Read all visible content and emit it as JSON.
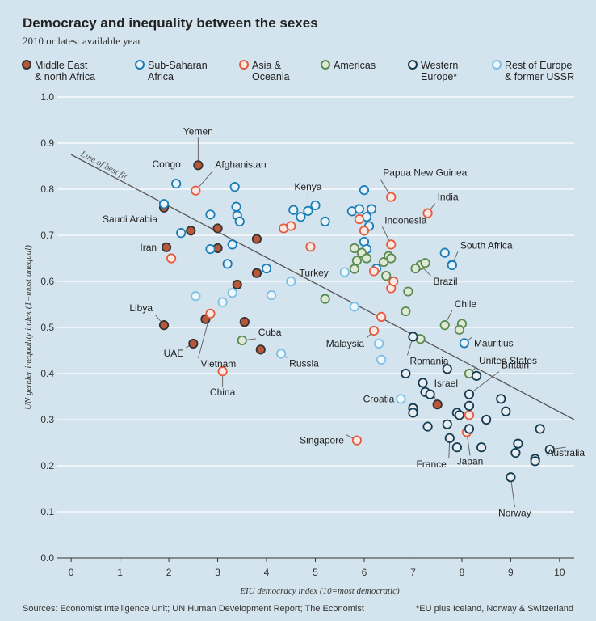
{
  "header": {
    "title": "Democracy and inequality between the sexes",
    "subtitle": "2010 or latest available year"
  },
  "footer": {
    "source": "Sources: Economist Intelligence Unit; UN Human Development Report; The Economist",
    "note": "*EU plus Iceland, Norway & Switzerland"
  },
  "colors": {
    "background": "#d4e4ee",
    "grid": "#ffffff",
    "fit_line": "#555555",
    "connector": "#666666"
  },
  "chart_data": {
    "type": "scatter",
    "title": "Democracy and inequality between the sexes",
    "subtitle": "2010 or latest available year",
    "xlabel": "EIU democracy index (10=most democratic)",
    "ylabel": "UN gender inequality index (1=most unequal)",
    "xlim": [
      -0.3,
      10.3
    ],
    "ylim": [
      0,
      1.0
    ],
    "xticks": [
      0,
      1,
      2,
      3,
      4,
      5,
      6,
      7,
      8,
      9,
      10
    ],
    "yticks": [
      0,
      0.1,
      0.2,
      0.3,
      0.4,
      0.5,
      0.6,
      0.7,
      0.8,
      0.9,
      1.0
    ],
    "grid": true,
    "fit_line": {
      "label": "Line of best fit",
      "x": [
        0,
        10.3
      ],
      "y": [
        0.875,
        0.3
      ]
    },
    "series": [
      {
        "key": "mena",
        "name": "Middle East & north Africa",
        "legend_lines": [
          "Middle East",
          "& north Africa"
        ],
        "stroke": "#333333",
        "fill": "#b85838",
        "points": [
          {
            "x": 2.6,
            "y": 0.852,
            "label": "Yemen"
          },
          {
            "x": 1.9,
            "y": 0.76,
            "label": "Saudi Arabia"
          },
          {
            "x": 1.95,
            "y": 0.674,
            "label": "Iran"
          },
          {
            "x": 1.9,
            "y": 0.505,
            "label": "Libya"
          },
          {
            "x": 2.5,
            "y": 0.465,
            "label": "UAE"
          },
          {
            "x": 7.5,
            "y": 0.333,
            "label": "Israel"
          },
          {
            "x": 2.45,
            "y": 0.71
          },
          {
            "x": 3.0,
            "y": 0.715
          },
          {
            "x": 3.0,
            "y": 0.672
          },
          {
            "x": 3.4,
            "y": 0.593
          },
          {
            "x": 3.55,
            "y": 0.512
          },
          {
            "x": 3.8,
            "y": 0.692
          },
          {
            "x": 3.8,
            "y": 0.618
          },
          {
            "x": 2.75,
            "y": 0.518
          },
          {
            "x": 3.88,
            "y": 0.452
          }
        ]
      },
      {
        "key": "ssa",
        "name": "Sub-Saharan Africa",
        "legend_lines": [
          "Sub-Saharan",
          "Africa"
        ],
        "stroke": "#1b7db5",
        "fill": "#e6f1f8",
        "points": [
          {
            "x": 2.15,
            "y": 0.812,
            "label": "Congo"
          },
          {
            "x": 4.85,
            "y": 0.753,
            "label": "Kenya"
          },
          {
            "x": 7.8,
            "y": 0.636,
            "label": "South Africa"
          },
          {
            "x": 8.05,
            "y": 0.466,
            "label": "Mauritius"
          },
          {
            "x": 1.9,
            "y": 0.768
          },
          {
            "x": 2.25,
            "y": 0.705
          },
          {
            "x": 2.85,
            "y": 0.67
          },
          {
            "x": 2.85,
            "y": 0.745
          },
          {
            "x": 3.35,
            "y": 0.805
          },
          {
            "x": 3.38,
            "y": 0.762
          },
          {
            "x": 3.4,
            "y": 0.743
          },
          {
            "x": 3.45,
            "y": 0.73
          },
          {
            "x": 3.3,
            "y": 0.68
          },
          {
            "x": 3.2,
            "y": 0.638
          },
          {
            "x": 4.0,
            "y": 0.628
          },
          {
            "x": 4.55,
            "y": 0.755
          },
          {
            "x": 4.7,
            "y": 0.74
          },
          {
            "x": 5.0,
            "y": 0.765
          },
          {
            "x": 5.2,
            "y": 0.73
          },
          {
            "x": 5.75,
            "y": 0.752
          },
          {
            "x": 5.9,
            "y": 0.757
          },
          {
            "x": 6.0,
            "y": 0.798
          },
          {
            "x": 6.05,
            "y": 0.74
          },
          {
            "x": 6.1,
            "y": 0.72
          },
          {
            "x": 6.15,
            "y": 0.757
          },
          {
            "x": 6.0,
            "y": 0.686
          },
          {
            "x": 6.05,
            "y": 0.67
          },
          {
            "x": 6.25,
            "y": 0.628
          },
          {
            "x": 7.65,
            "y": 0.662
          },
          {
            "x": 7.8,
            "y": 0.635
          }
        ]
      },
      {
        "key": "asia",
        "name": "Asia & Oceania",
        "legend_lines": [
          "Asia &",
          "Oceania"
        ],
        "stroke": "#e55a3c",
        "fill": "#fbe9e4",
        "points": [
          {
            "x": 2.55,
            "y": 0.797,
            "label": "Afghanistan"
          },
          {
            "x": 6.55,
            "y": 0.783,
            "label": "Papua New Guinea"
          },
          {
            "x": 7.3,
            "y": 0.748,
            "label": "India"
          },
          {
            "x": 6.55,
            "y": 0.68,
            "label": "Indonesia"
          },
          {
            "x": 2.85,
            "y": 0.53,
            "label": "Vietnam"
          },
          {
            "x": 3.1,
            "y": 0.405,
            "label": "China"
          },
          {
            "x": 5.85,
            "y": 0.255,
            "label": "Singapore"
          },
          {
            "x": 8.1,
            "y": 0.273,
            "label": "Japan"
          },
          {
            "x": 6.2,
            "y": 0.493,
            "label": "Malaysia"
          },
          {
            "x": 2.05,
            "y": 0.65
          },
          {
            "x": 4.35,
            "y": 0.715
          },
          {
            "x": 4.5,
            "y": 0.72
          },
          {
            "x": 4.9,
            "y": 0.675
          },
          {
            "x": 5.9,
            "y": 0.735
          },
          {
            "x": 6.2,
            "y": 0.622
          },
          {
            "x": 6.55,
            "y": 0.585
          },
          {
            "x": 6.6,
            "y": 0.6
          },
          {
            "x": 6.35,
            "y": 0.523
          },
          {
            "x": 8.15,
            "y": 0.31
          },
          {
            "x": 6.0,
            "y": 0.71
          },
          {
            "x": 6.5,
            "y": 0.652
          }
        ]
      },
      {
        "key": "americas",
        "name": "Americas",
        "legend_lines": [
          "Americas"
        ],
        "stroke": "#5a8a52",
        "fill": "#dfe9d6",
        "points": [
          {
            "x": 7.15,
            "y": 0.635,
            "label": "Brazil"
          },
          {
            "x": 7.65,
            "y": 0.505,
            "label": "Chile"
          },
          {
            "x": 8.15,
            "y": 0.4,
            "label": "United States"
          },
          {
            "x": 3.5,
            "y": 0.472,
            "label": "Cuba"
          },
          {
            "x": 5.2,
            "y": 0.562
          },
          {
            "x": 5.8,
            "y": 0.672
          },
          {
            "x": 5.85,
            "y": 0.645
          },
          {
            "x": 5.8,
            "y": 0.627
          },
          {
            "x": 5.95,
            "y": 0.662
          },
          {
            "x": 6.05,
            "y": 0.65
          },
          {
            "x": 6.4,
            "y": 0.642
          },
          {
            "x": 6.5,
            "y": 0.655
          },
          {
            "x": 6.55,
            "y": 0.65
          },
          {
            "x": 6.45,
            "y": 0.612
          },
          {
            "x": 6.9,
            "y": 0.578
          },
          {
            "x": 6.85,
            "y": 0.535
          },
          {
            "x": 7.15,
            "y": 0.475
          },
          {
            "x": 7.25,
            "y": 0.64
          },
          {
            "x": 7.05,
            "y": 0.628
          },
          {
            "x": 8.0,
            "y": 0.508
          },
          {
            "x": 7.95,
            "y": 0.495
          }
        ]
      },
      {
        "key": "western_europe",
        "name": "Western Europe*",
        "legend_lines": [
          "Western",
          "Europe*"
        ],
        "stroke": "#143a52",
        "fill": "#e6eef3",
        "points": [
          {
            "x": 7.0,
            "y": 0.48,
            "label": "Romania"
          },
          {
            "x": 8.15,
            "y": 0.355,
            "label": "Britain"
          },
          {
            "x": 7.75,
            "y": 0.26,
            "label": "France"
          },
          {
            "x": 9.8,
            "y": 0.235,
            "label": "Australia"
          },
          {
            "x": 9.0,
            "y": 0.175,
            "label": "Norway"
          },
          {
            "x": 6.85,
            "y": 0.4
          },
          {
            "x": 7.0,
            "y": 0.325
          },
          {
            "x": 7.0,
            "y": 0.315
          },
          {
            "x": 7.2,
            "y": 0.38
          },
          {
            "x": 7.25,
            "y": 0.36
          },
          {
            "x": 7.35,
            "y": 0.355
          },
          {
            "x": 7.3,
            "y": 0.285
          },
          {
            "x": 7.7,
            "y": 0.41
          },
          {
            "x": 7.7,
            "y": 0.29
          },
          {
            "x": 7.9,
            "y": 0.315
          },
          {
            "x": 7.95,
            "y": 0.31
          },
          {
            "x": 8.15,
            "y": 0.33
          },
          {
            "x": 8.15,
            "y": 0.28
          },
          {
            "x": 7.9,
            "y": 0.24
          },
          {
            "x": 8.3,
            "y": 0.395
          },
          {
            "x": 8.4,
            "y": 0.24
          },
          {
            "x": 8.5,
            "y": 0.3
          },
          {
            "x": 8.8,
            "y": 0.345
          },
          {
            "x": 8.9,
            "y": 0.318
          },
          {
            "x": 9.1,
            "y": 0.228
          },
          {
            "x": 9.15,
            "y": 0.248
          },
          {
            "x": 9.5,
            "y": 0.215
          },
          {
            "x": 9.5,
            "y": 0.21
          },
          {
            "x": 9.6,
            "y": 0.28
          }
        ]
      },
      {
        "key": "rest_europe",
        "name": "Rest of Europe & former USSR",
        "legend_lines": [
          "Rest of Europe",
          "& former USSR"
        ],
        "stroke": "#7cc0e6",
        "fill": "#eef7fc",
        "points": [
          {
            "x": 5.6,
            "y": 0.62,
            "label": "Turkey"
          },
          {
            "x": 4.3,
            "y": 0.443,
            "label": "Russia"
          },
          {
            "x": 6.75,
            "y": 0.345,
            "label": "Croatia"
          },
          {
            "x": 2.55,
            "y": 0.568
          },
          {
            "x": 3.1,
            "y": 0.555
          },
          {
            "x": 3.3,
            "y": 0.575
          },
          {
            "x": 4.1,
            "y": 0.57
          },
          {
            "x": 4.5,
            "y": 0.6
          },
          {
            "x": 5.8,
            "y": 0.545
          },
          {
            "x": 6.3,
            "y": 0.465
          },
          {
            "x": 6.35,
            "y": 0.43
          }
        ]
      }
    ],
    "annotations": [
      {
        "text": "Yemen",
        "x": 2.6,
        "y": 0.852
      },
      {
        "text": "Congo",
        "x": 2.15,
        "y": 0.812
      },
      {
        "text": "Afghanistan",
        "x": 2.55,
        "y": 0.797
      },
      {
        "text": "Kenya",
        "x": 4.85,
        "y": 0.753
      },
      {
        "text": "Papua New Guinea",
        "x": 6.55,
        "y": 0.783
      },
      {
        "text": "India",
        "x": 7.3,
        "y": 0.748
      },
      {
        "text": "Saudi Arabia",
        "x": 1.9,
        "y": 0.76
      },
      {
        "text": "Indonesia",
        "x": 6.55,
        "y": 0.68
      },
      {
        "text": "Iran",
        "x": 1.95,
        "y": 0.674
      },
      {
        "text": "South Africa",
        "x": 7.8,
        "y": 0.636
      },
      {
        "text": "Turkey",
        "x": 5.6,
        "y": 0.62
      },
      {
        "text": "Brazil",
        "x": 7.15,
        "y": 0.635
      },
      {
        "text": "Libya",
        "x": 1.9,
        "y": 0.505
      },
      {
        "text": "Chile",
        "x": 7.65,
        "y": 0.505
      },
      {
        "text": "Cuba",
        "x": 3.5,
        "y": 0.472
      },
      {
        "text": "Malaysia",
        "x": 6.2,
        "y": 0.493
      },
      {
        "text": "Mauritius",
        "x": 8.05,
        "y": 0.466
      },
      {
        "text": "UAE",
        "x": 2.5,
        "y": 0.465
      },
      {
        "text": "Vietnam",
        "x": 2.85,
        "y": 0.53
      },
      {
        "text": "Romania",
        "x": 7.0,
        "y": 0.48
      },
      {
        "text": "United States",
        "x": 8.15,
        "y": 0.4
      },
      {
        "text": "Russia",
        "x": 4.3,
        "y": 0.443
      },
      {
        "text": "China",
        "x": 3.1,
        "y": 0.405
      },
      {
        "text": "Israel",
        "x": 7.5,
        "y": 0.333
      },
      {
        "text": "Britain",
        "x": 8.15,
        "y": 0.355
      },
      {
        "text": "Croatia",
        "x": 6.75,
        "y": 0.345
      },
      {
        "text": "Singapore",
        "x": 5.85,
        "y": 0.255
      },
      {
        "text": "France",
        "x": 7.75,
        "y": 0.26
      },
      {
        "text": "Australia",
        "x": 9.8,
        "y": 0.235
      },
      {
        "text": "Japan",
        "x": 8.1,
        "y": 0.273
      },
      {
        "text": "Norway",
        "x": 9.0,
        "y": 0.175
      }
    ]
  }
}
